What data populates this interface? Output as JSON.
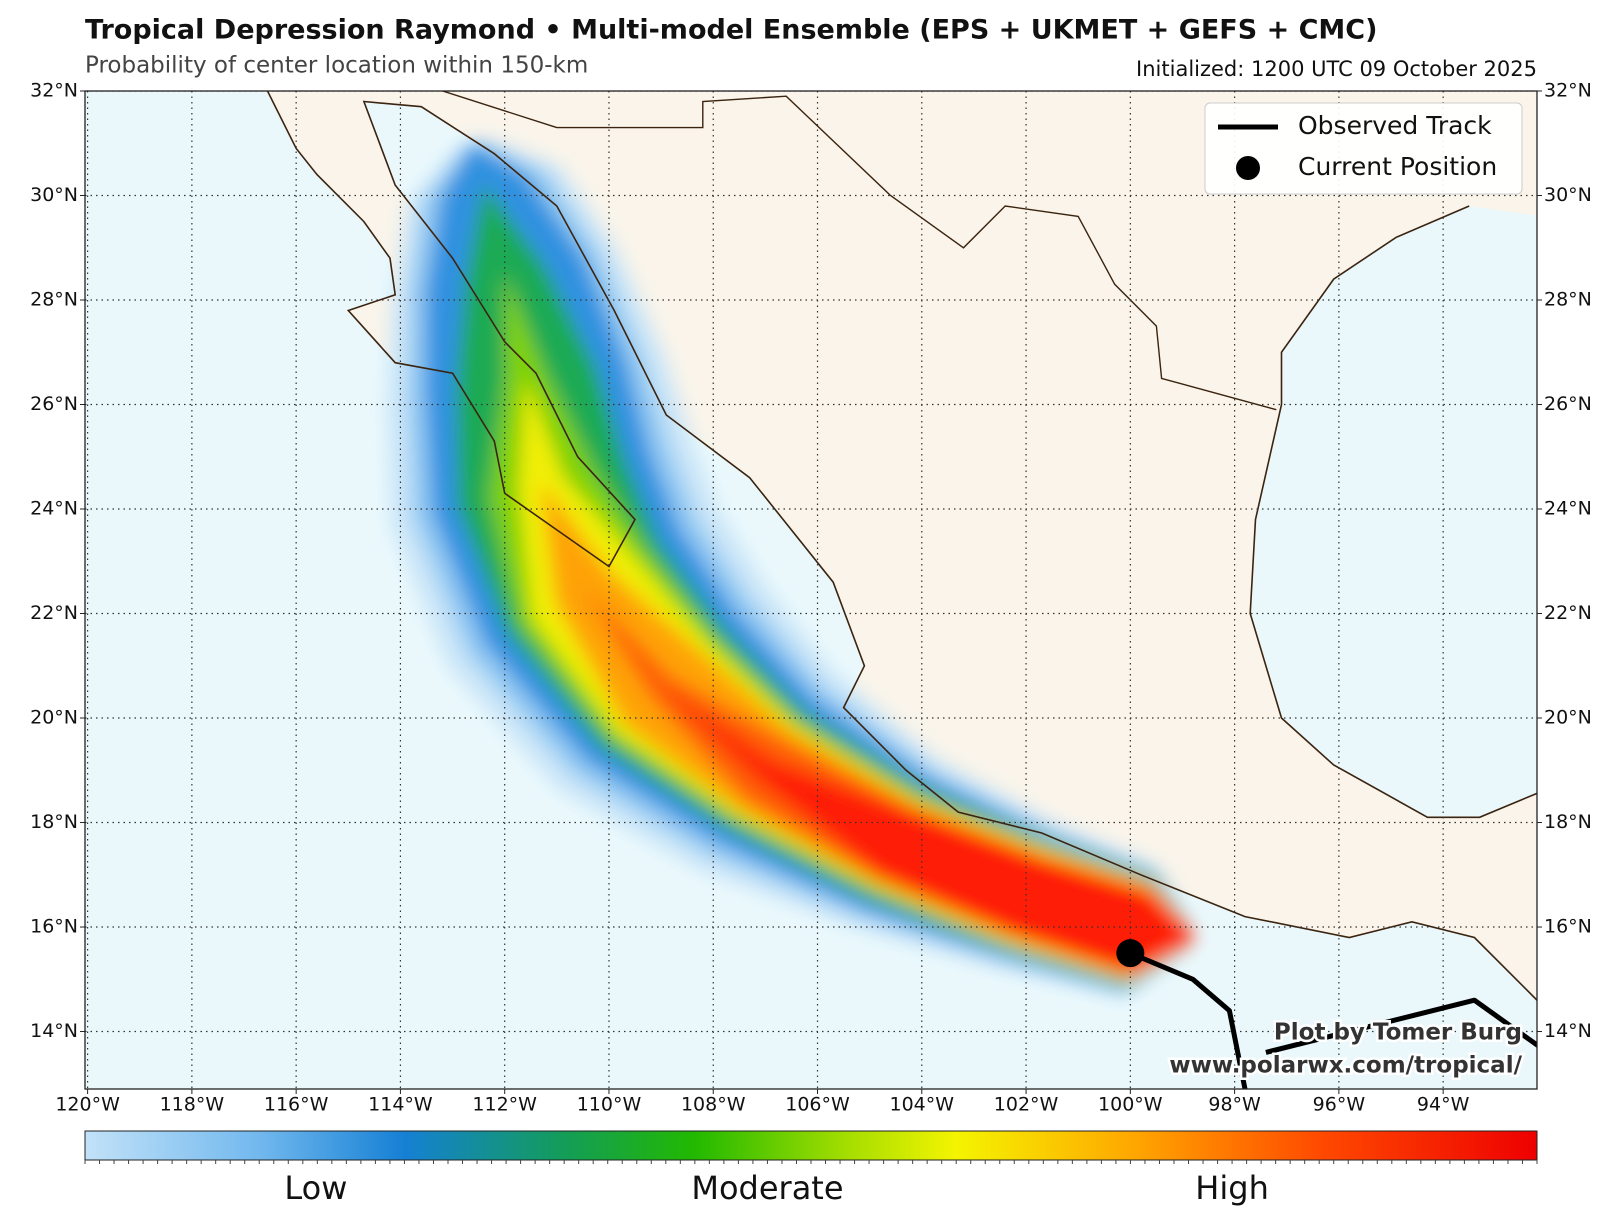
{
  "chart_data": {
    "type": "map",
    "title": "Tropical Depression Raymond • Multi-model Ensemble (EPS + UKMET + GEFS + CMC)",
    "subtitle": "Probability of center location within 150-km",
    "initialized": "Initialized: 1200 UTC 09 October 2025",
    "xlim": [
      -120.05,
      -92.2
    ],
    "ylim": [
      12.9,
      32
    ],
    "xticks": [
      {
        "value": -120,
        "label": "120°W"
      },
      {
        "value": -118,
        "label": "118°W"
      },
      {
        "value": -116,
        "label": "116°W"
      },
      {
        "value": -114,
        "label": "114°W"
      },
      {
        "value": -112,
        "label": "112°W"
      },
      {
        "value": -110,
        "label": "110°W"
      },
      {
        "value": -108,
        "label": "108°W"
      },
      {
        "value": -106,
        "label": "106°W"
      },
      {
        "value": -104,
        "label": "104°W"
      },
      {
        "value": -102,
        "label": "102°W"
      },
      {
        "value": -100,
        "label": "100°W"
      },
      {
        "value": -98,
        "label": "98°W"
      },
      {
        "value": -96,
        "label": "96°W"
      },
      {
        "value": -94,
        "label": "94°W"
      }
    ],
    "yticks": [
      {
        "value": 14,
        "label": "14°N"
      },
      {
        "value": 16,
        "label": "16°N"
      },
      {
        "value": 18,
        "label": "18°N"
      },
      {
        "value": 20,
        "label": "20°N"
      },
      {
        "value": 22,
        "label": "22°N"
      },
      {
        "value": 24,
        "label": "24°N"
      },
      {
        "value": 26,
        "label": "26°N"
      },
      {
        "value": 28,
        "label": "28°N"
      },
      {
        "value": 30,
        "label": "30°N"
      },
      {
        "value": 32,
        "label": "32°N"
      }
    ],
    "grid": true,
    "track": {
      "name": "Observed Track",
      "color": "#000000",
      "lon": [
        -92.0,
        -93.4,
        -97.4,
        null,
        -97.8,
        -98.1,
        -98.8,
        -100.0
      ],
      "lat": [
        13.6,
        14.6,
        13.6,
        null,
        12.9,
        14.4,
        15.0,
        15.5
      ]
    },
    "current_position": {
      "name": "Current Position",
      "color": "#000000",
      "lon": -100.0,
      "lat": 15.5
    },
    "colorbar": {
      "labels": [
        "Low",
        "Moderate",
        "High"
      ]
    },
    "credit": [
      "Plot by Tomer Burg",
      "www.polarwx.com/tropical/"
    ]
  }
}
